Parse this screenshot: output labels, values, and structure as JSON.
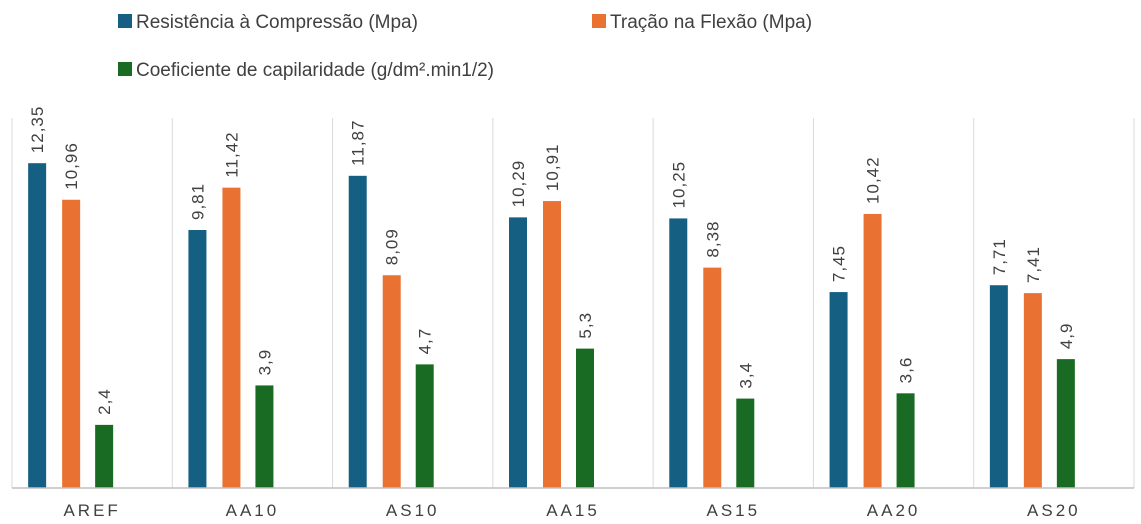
{
  "colors": {
    "series_1": "#156082",
    "series_2": "#E97132",
    "series_3": "#196B24",
    "gridline": "#D9D9D9",
    "axis": "#BFBFBF",
    "text": "#404040"
  },
  "chart_data": {
    "type": "bar",
    "title": "",
    "xlabel": "",
    "ylabel": "",
    "grid": true,
    "legend_position": "top",
    "ylim": [
      0,
      14
    ],
    "categories": [
      "AREF",
      "AA10",
      "AS10",
      "AA15",
      "AS15",
      "AA20",
      "AS20"
    ],
    "series": [
      {
        "name": "Resistência à Compressão (Mpa)",
        "values": [
          12.35,
          9.81,
          11.87,
          10.29,
          10.25,
          7.45,
          7.71
        ],
        "labels": [
          "12,35",
          "9,81",
          "11,87",
          "10,29",
          "10,25",
          "7,45",
          "7,71"
        ]
      },
      {
        "name": "Tração na Flexão (Mpa)",
        "values": [
          10.96,
          11.42,
          8.09,
          10.91,
          8.38,
          10.42,
          7.41
        ],
        "labels": [
          "10,96",
          "11,42",
          "8,09",
          "10,91",
          "8,38",
          "10,42",
          "7,41"
        ]
      },
      {
        "name": "Coeficiente de capilaridade (g/dm².min1/2)",
        "values": [
          2.4,
          3.9,
          4.7,
          5.3,
          3.4,
          3.6,
          4.9
        ],
        "labels": [
          "2,4",
          "3,9",
          "4,7",
          "5,3",
          "3,4",
          "3,6",
          "4,9"
        ]
      }
    ]
  }
}
